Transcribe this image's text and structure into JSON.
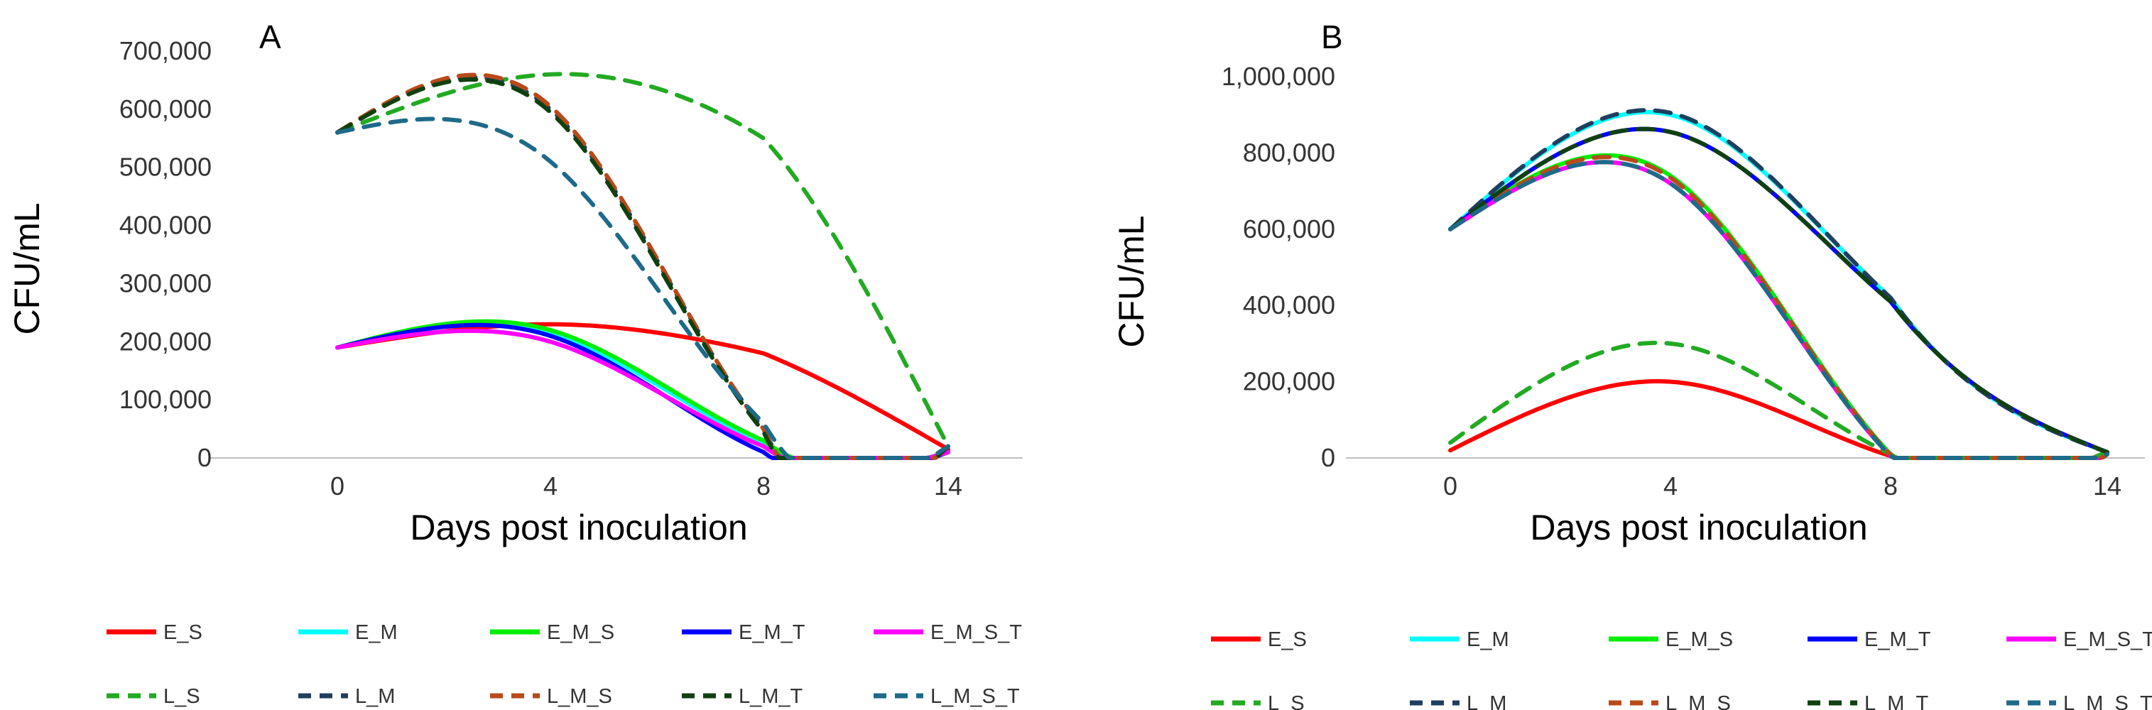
{
  "chart_data": [
    {
      "type": "line",
      "panel_label": "A",
      "xlabel": "Days  post inoculation",
      "ylabel": "CFU/mL",
      "x_ticks": [
        "0",
        "4",
        "8",
        "14"
      ],
      "y_ticks": [
        "700,000",
        "600,000",
        "500,000",
        "400,000",
        "300,000",
        "200,000",
        "100,000",
        "0"
      ],
      "ylim": [
        0,
        700000
      ],
      "grid": false,
      "legend_position": "bottom",
      "series": [
        {
          "name": "E_S",
          "color": "#ff0000",
          "dash": "solid",
          "values": [
            {
              "day": 0,
              "cfu": 190000
            },
            {
              "day": 4,
              "cfu": 230000
            },
            {
              "day": 8,
              "cfu": 180000
            },
            {
              "day": 14,
              "cfu": 15000
            }
          ]
        },
        {
          "name": "E_M",
          "color": "#00ffff",
          "dash": "solid",
          "values": [
            {
              "day": 0,
              "cfu": 190000
            },
            {
              "day": 4,
              "cfu": 215000
            },
            {
              "day": 8,
              "cfu": 25000
            },
            {
              "day": 14,
              "cfu": 10000
            }
          ]
        },
        {
          "name": "E_M_S",
          "color": "#00ee00",
          "dash": "solid",
          "values": [
            {
              "day": 0,
              "cfu": 190000
            },
            {
              "day": 4,
              "cfu": 220000
            },
            {
              "day": 8,
              "cfu": 30000
            },
            {
              "day": 14,
              "cfu": 10000
            }
          ]
        },
        {
          "name": "E_M_T",
          "color": "#0000ff",
          "dash": "solid",
          "values": [
            {
              "day": 0,
              "cfu": 190000
            },
            {
              "day": 4,
              "cfu": 210000
            },
            {
              "day": 8,
              "cfu": 10000
            },
            {
              "day": 14,
              "cfu": 10000
            }
          ]
        },
        {
          "name": "E_M_S_T",
          "color": "#ff00ff",
          "dash": "solid",
          "values": [
            {
              "day": 0,
              "cfu": 190000
            },
            {
              "day": 4,
              "cfu": 200000
            },
            {
              "day": 8,
              "cfu": 20000
            },
            {
              "day": 14,
              "cfu": 10000
            }
          ]
        },
        {
          "name": "L_S",
          "color": "#22aa22",
          "dash": "dashed",
          "values": [
            {
              "day": 0,
              "cfu": 560000
            },
            {
              "day": 4,
              "cfu": 660000
            },
            {
              "day": 8,
              "cfu": 550000
            },
            {
              "day": 14,
              "cfu": 20000
            }
          ]
        },
        {
          "name": "L_M",
          "color": "#1f3f5f",
          "dash": "dashed",
          "values": [
            {
              "day": 0,
              "cfu": 560000
            },
            {
              "day": 4,
              "cfu": 600000
            },
            {
              "day": 8,
              "cfu": 50000
            },
            {
              "day": 14,
              "cfu": 20000
            }
          ]
        },
        {
          "name": "L_M_S",
          "color": "#b84a1a",
          "dash": "dashed",
          "values": [
            {
              "day": 0,
              "cfu": 560000
            },
            {
              "day": 4,
              "cfu": 605000
            },
            {
              "day": 8,
              "cfu": 50000
            },
            {
              "day": 14,
              "cfu": 20000
            }
          ]
        },
        {
          "name": "L_M_T",
          "color": "#104010",
          "dash": "dashed",
          "values": [
            {
              "day": 0,
              "cfu": 560000
            },
            {
              "day": 4,
              "cfu": 595000
            },
            {
              "day": 8,
              "cfu": 45000
            },
            {
              "day": 14,
              "cfu": 20000
            }
          ]
        },
        {
          "name": "L_M_S_T",
          "color": "#1e6a88",
          "dash": "dashed",
          "values": [
            {
              "day": 0,
              "cfu": 560000
            },
            {
              "day": 4,
              "cfu": 510000
            },
            {
              "day": 8,
              "cfu": 60000
            },
            {
              "day": 14,
              "cfu": 20000
            }
          ]
        }
      ]
    },
    {
      "type": "line",
      "panel_label": "B",
      "xlabel": "Days  post inoculation",
      "ylabel": "CFU/mL",
      "x_ticks": [
        "0",
        "4",
        "8",
        "14"
      ],
      "y_ticks": [
        "1,000,000",
        "800,000",
        "600,000",
        "400,000",
        "200,000",
        "0"
      ],
      "ylim": [
        0,
        1000000
      ],
      "grid": false,
      "legend_position": "bottom",
      "series": [
        {
          "name": "E_S",
          "color": "#ff0000",
          "dash": "solid",
          "values": [
            {
              "day": 0,
              "cfu": 20000
            },
            {
              "day": 4,
              "cfu": 200000
            },
            {
              "day": 8,
              "cfu": 5000
            },
            {
              "day": 14,
              "cfu": 10000
            }
          ]
        },
        {
          "name": "E_M",
          "color": "#00ffff",
          "dash": "solid",
          "values": [
            {
              "day": 0,
              "cfu": 600000
            },
            {
              "day": 4,
              "cfu": 900000
            },
            {
              "day": 8,
              "cfu": 420000
            },
            {
              "day": 14,
              "cfu": 15000
            }
          ]
        },
        {
          "name": "E_M_S",
          "color": "#00ee00",
          "dash": "solid",
          "values": [
            {
              "day": 0,
              "cfu": 600000
            },
            {
              "day": 4,
              "cfu": 740000
            },
            {
              "day": 8,
              "cfu": 10000
            },
            {
              "day": 14,
              "cfu": 10000
            }
          ]
        },
        {
          "name": "E_M_T",
          "color": "#0000ff",
          "dash": "solid",
          "values": [
            {
              "day": 0,
              "cfu": 600000
            },
            {
              "day": 4,
              "cfu": 855000
            },
            {
              "day": 8,
              "cfu": 410000
            },
            {
              "day": 14,
              "cfu": 15000
            }
          ]
        },
        {
          "name": "E_M_S_T",
          "color": "#ff00ff",
          "dash": "solid",
          "values": [
            {
              "day": 0,
              "cfu": 600000
            },
            {
              "day": 4,
              "cfu": 720000
            },
            {
              "day": 8,
              "cfu": 5000
            },
            {
              "day": 14,
              "cfu": 10000
            }
          ]
        },
        {
          "name": "L_S",
          "color": "#22aa22",
          "dash": "dashed",
          "values": [
            {
              "day": 0,
              "cfu": 40000
            },
            {
              "day": 4,
              "cfu": 300000
            },
            {
              "day": 8,
              "cfu": 10000
            },
            {
              "day": 14,
              "cfu": 15000
            }
          ]
        },
        {
          "name": "L_M",
          "color": "#1f3f5f",
          "dash": "dashed",
          "values": [
            {
              "day": 0,
              "cfu": 600000
            },
            {
              "day": 4,
              "cfu": 905000
            },
            {
              "day": 8,
              "cfu": 420000
            },
            {
              "day": 14,
              "cfu": 15000
            }
          ]
        },
        {
          "name": "L_M_S",
          "color": "#b84a1a",
          "dash": "dashed",
          "values": [
            {
              "day": 0,
              "cfu": 600000
            },
            {
              "day": 4,
              "cfu": 735000
            },
            {
              "day": 8,
              "cfu": 8000
            },
            {
              "day": 14,
              "cfu": 10000
            }
          ]
        },
        {
          "name": "L_M_T",
          "color": "#104010",
          "dash": "dashed",
          "values": [
            {
              "day": 0,
              "cfu": 600000
            },
            {
              "day": 4,
              "cfu": 855000
            },
            {
              "day": 8,
              "cfu": 410000
            },
            {
              "day": 14,
              "cfu": 15000
            }
          ]
        },
        {
          "name": "L_M_S_T",
          "color": "#1e6a88",
          "dash": "dashed",
          "values": [
            {
              "day": 0,
              "cfu": 600000
            },
            {
              "day": 4,
              "cfu": 720000
            },
            {
              "day": 8,
              "cfu": 5000
            },
            {
              "day": 14,
              "cfu": 10000
            }
          ]
        }
      ]
    }
  ]
}
